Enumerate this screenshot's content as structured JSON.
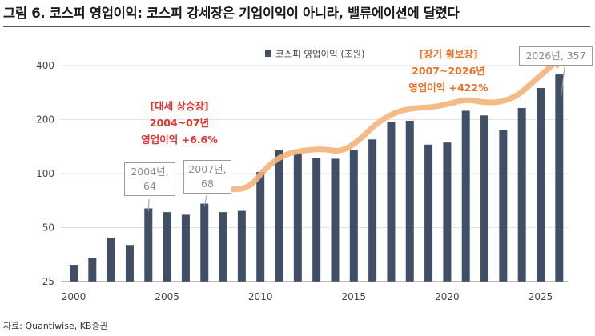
{
  "title": "그림 6. 코스피 영업이익: 코스피 강세장은 기업이익이 아니라, 밸류에이션에 달렸다",
  "source": "자료: Quantiwise, KB증권",
  "colors": {
    "bar": "#414f66",
    "trend": "#f5b27a",
    "red": "#e0322f",
    "orange": "#e8722c",
    "grid": "#e3e3e3"
  },
  "annotations": {
    "bull1": {
      "line1": "[대세 상승장]",
      "line2": "2004~07년",
      "line3": "영업이익 +6.6%"
    },
    "bull2": {
      "line1": "[장기 횡보장]",
      "line2": "2007~2026년",
      "line3": "영업이익 +422%"
    }
  },
  "callouts": {
    "c2004": {
      "line1": "2004년,",
      "line2": "64"
    },
    "c2007": {
      "line1": "2007년,",
      "line2": "68"
    },
    "c2026": {
      "text": "2026년, 357"
    }
  },
  "chart_data": {
    "type": "bar",
    "title": "",
    "legend": "코스피 영업이익 (조원)",
    "legend_position": "top-center",
    "yscale": "log",
    "ylim": [
      25,
      400
    ],
    "yticks": [
      25,
      50,
      100,
      200,
      400
    ],
    "xticks": [
      2000,
      2005,
      2010,
      2015,
      2020,
      2025
    ],
    "x": [
      2000,
      2001,
      2002,
      2003,
      2004,
      2005,
      2006,
      2007,
      2008,
      2009,
      2010,
      2011,
      2012,
      2013,
      2014,
      2015,
      2016,
      2017,
      2018,
      2019,
      2020,
      2021,
      2022,
      2023,
      2024,
      2025,
      2026
    ],
    "values": [
      31,
      34,
      44,
      40,
      64,
      61,
      59,
      68,
      61,
      62,
      102,
      136,
      130,
      122,
      121,
      136,
      155,
      194,
      197,
      145,
      149,
      224,
      211,
      175,
      232,
      300,
      357
    ],
    "trend_line": {
      "x": [
        2007,
        2026
      ],
      "y": [
        68,
        357
      ]
    }
  }
}
